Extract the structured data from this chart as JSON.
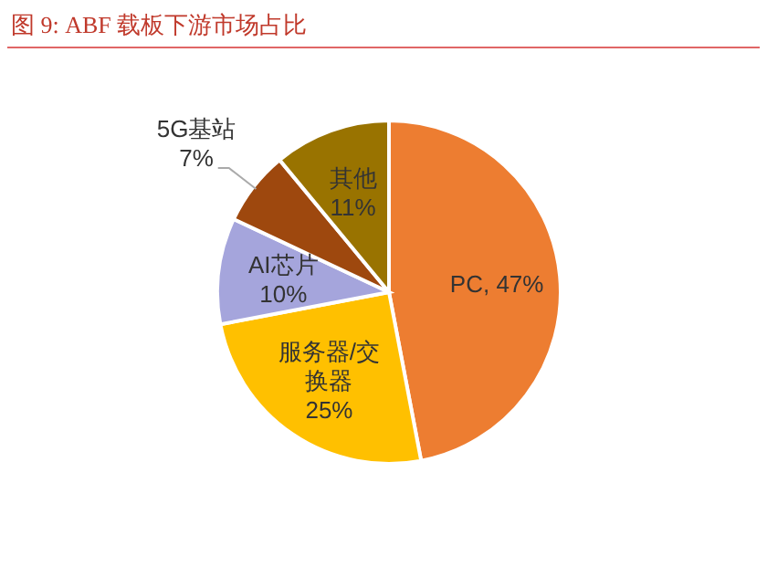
{
  "chart_data": {
    "type": "pie",
    "title": "图 9:   ABF 载板下游市场占比",
    "categories": [
      "PC",
      "服务器/交换器",
      "AI芯片",
      "5G基站",
      "其他"
    ],
    "values": [
      47,
      25,
      10,
      7,
      11
    ],
    "colors": [
      "#ed7d31",
      "#ffc000",
      "#a5a5dc",
      "#9e480e",
      "#997300"
    ],
    "value_labels": [
      ", 47%",
      "25%",
      "10%",
      "7%",
      "11%"
    ],
    "legend": false
  }
}
